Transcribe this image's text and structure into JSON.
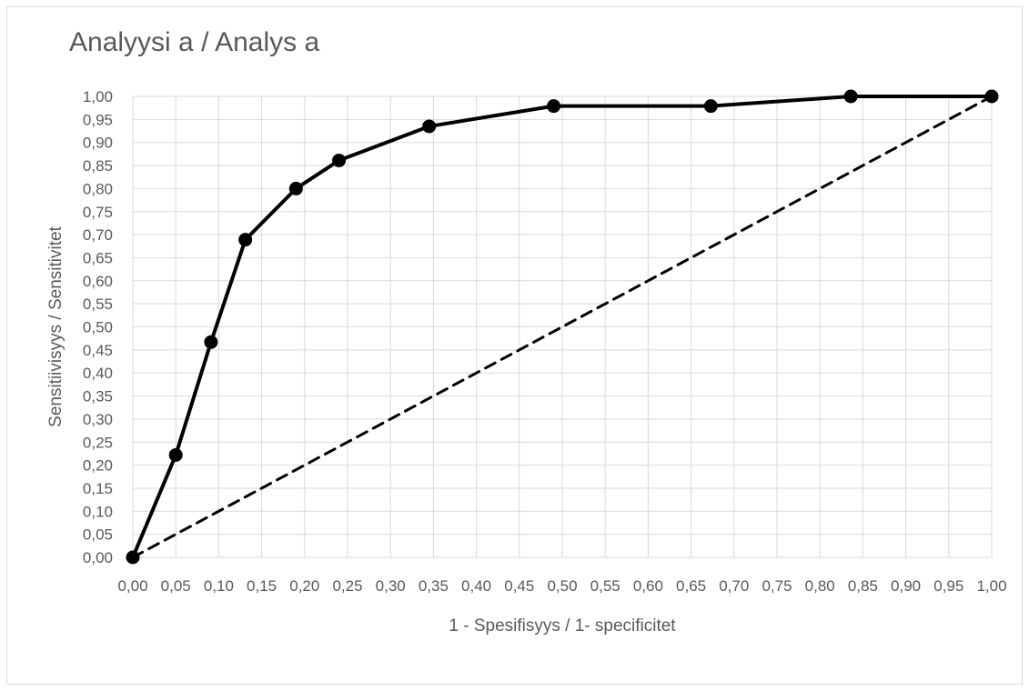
{
  "chart_data": {
    "type": "line",
    "title": "Analyysi a / Analys a",
    "xlabel": "1 - Spesifisyys / 1- specificitet",
    "ylabel": "Sensitiivisyys / Sensitivitet",
    "xlim": [
      0,
      1
    ],
    "ylim": [
      0,
      1
    ],
    "x_tick_labels": [
      "0,00",
      "0,05",
      "0,10",
      "0,15",
      "0,20",
      "0,25",
      "0,30",
      "0,35",
      "0,40",
      "0,45",
      "0,50",
      "0,55",
      "0,60",
      "0,65",
      "0,70",
      "0,75",
      "0,80",
      "0,85",
      "0,90",
      "0,95",
      "1,00"
    ],
    "y_tick_labels": [
      "0,00",
      "0,05",
      "0,10",
      "0,15",
      "0,20",
      "0,25",
      "0,30",
      "0,35",
      "0,40",
      "0,45",
      "0,50",
      "0,55",
      "0,60",
      "0,65",
      "0,70",
      "0,75",
      "0,80",
      "0,85",
      "0,90",
      "0,95",
      "1,00"
    ],
    "grid": true,
    "legend": "none",
    "series": [
      {
        "style": "solid-with-markers",
        "color": "#000000",
        "points": [
          {
            "x": 0.0,
            "y": 0.0
          },
          {
            "x": 0.05,
            "y": 0.222
          },
          {
            "x": 0.091,
            "y": 0.467
          },
          {
            "x": 0.131,
            "y": 0.689
          },
          {
            "x": 0.19,
            "y": 0.8
          },
          {
            "x": 0.24,
            "y": 0.861
          },
          {
            "x": 0.345,
            "y": 0.935
          },
          {
            "x": 0.49,
            "y": 0.979
          },
          {
            "x": 0.673,
            "y": 0.979
          },
          {
            "x": 0.836,
            "y": 1.0
          },
          {
            "x": 1.0,
            "y": 1.0
          }
        ]
      },
      {
        "style": "dashed",
        "color": "#000000",
        "points": [
          {
            "x": 0.0,
            "y": 0.0
          },
          {
            "x": 1.0,
            "y": 1.0
          }
        ]
      }
    ]
  }
}
